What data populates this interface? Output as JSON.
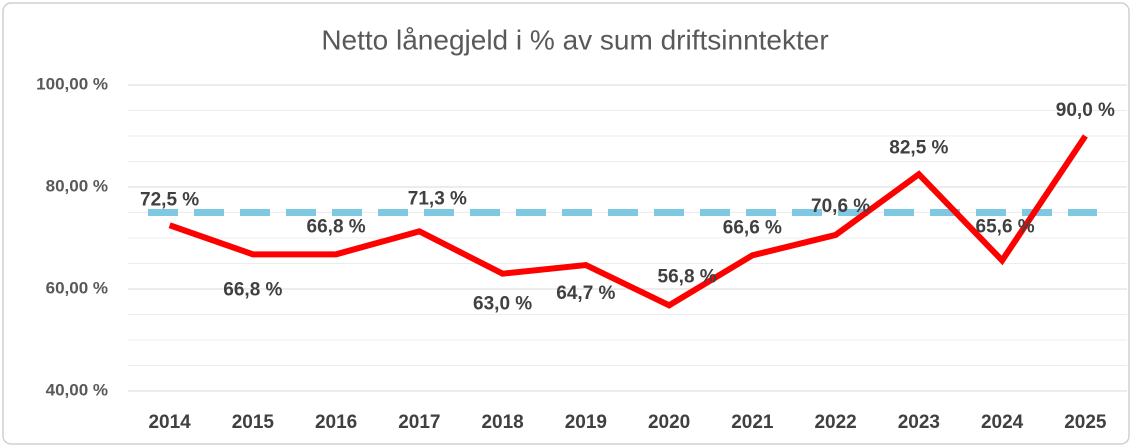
{
  "chart_data": {
    "type": "line",
    "title": "Netto lånegjeld i % av sum driftsinntekter",
    "categories": [
      "2014",
      "2015",
      "2016",
      "2017",
      "2018",
      "2019",
      "2020",
      "2021",
      "2022",
      "2023",
      "2024",
      "2025"
    ],
    "series": [
      {
        "color": "#ff0000",
        "values": [
          72.5,
          66.8,
          66.8,
          71.3,
          63.0,
          64.7,
          56.8,
          66.6,
          70.6,
          82.5,
          65.6,
          90.0
        ],
        "value_labels": [
          "72,5 %",
          "66,8 %",
          "66,8 %",
          "71,3 %",
          "63,0 %",
          "64,7 %",
          "56,8 %",
          "66,6 %",
          "70,6 %",
          "82,5 %",
          "65,6 %",
          "90,0 %"
        ]
      }
    ],
    "reference_line": {
      "value": 75,
      "color": "#7ec8e3",
      "dashed": true
    },
    "ylim": [
      40,
      100
    ],
    "yticks": [
      {
        "value": 40,
        "label": "40,00 %"
      },
      {
        "value": 60,
        "label": "60,00 %"
      },
      {
        "value": 80,
        "label": "80,00 %"
      },
      {
        "value": 100,
        "label": "100,00 %"
      }
    ],
    "minor_yticks": [
      45,
      50,
      55,
      65,
      70,
      75,
      85,
      90,
      95
    ],
    "grid": true
  }
}
